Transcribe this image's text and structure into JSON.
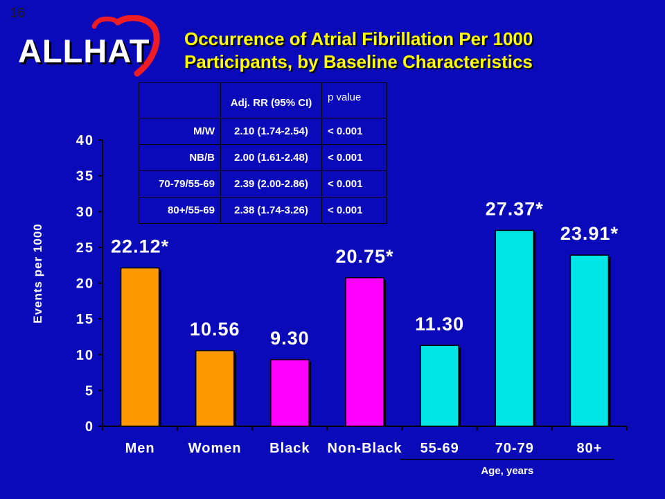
{
  "slide_number": "16",
  "logo": {
    "text": "ALLHAT"
  },
  "title": {
    "line1": "Occurrence of Atrial Fibrillation Per 1000",
    "line2": "Participants, by Baseline Characteristics"
  },
  "stats_table": {
    "headers": [
      "",
      "Adj. RR (95% CI)",
      "p value"
    ],
    "rows": [
      [
        "M/W",
        "2.10 (1.74-2.54)",
        "< 0.001"
      ],
      [
        "NB/B",
        "2.00 (1.61-2.48)",
        "< 0.001"
      ],
      [
        "70-79/55-69",
        "2.39 (2.00-2.86)",
        "< 0.001"
      ],
      [
        "80+/55-69",
        "2.38 (1.74-3.26)",
        "< 0.001"
      ]
    ]
  },
  "colors": {
    "background": "#0a0ab8",
    "title": "#ffff00",
    "orange": "#ff9900",
    "magenta": "#ff00ff",
    "cyan": "#00e5e5"
  },
  "chart_data": {
    "type": "bar",
    "categories": [
      "Men",
      "Women",
      "Black",
      "Non-Black",
      "55-69",
      "70-79",
      "80+"
    ],
    "values": [
      22.12,
      10.56,
      9.3,
      20.75,
      11.3,
      27.37,
      23.91
    ],
    "value_labels": [
      "22.12*",
      "10.56",
      "9.30",
      "20.75*",
      "11.30",
      "27.37*",
      "23.91*"
    ],
    "bar_colors": [
      "#ff9900",
      "#ff9900",
      "#ff00ff",
      "#ff00ff",
      "#00e5e5",
      "#00e5e5",
      "#00e5e5"
    ],
    "ylabel": "Events per 1000",
    "ylim": [
      0,
      40
    ],
    "yticks": [
      0,
      5,
      10,
      15,
      20,
      25,
      30,
      35,
      40
    ],
    "group_label": "Age, years",
    "grid": false
  }
}
